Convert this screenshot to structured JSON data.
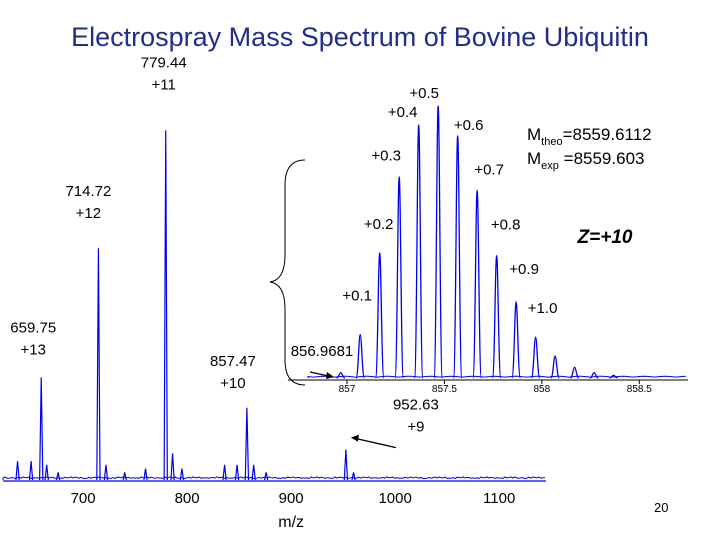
{
  "title": "Electrospray Mass Spectrum of Bovine Ubiquitin",
  "page_number": "20",
  "colors": {
    "title": "#1f2e8c",
    "trace": "#0000ee",
    "text": "#000000"
  },
  "chart_data": [
    {
      "type": "line",
      "role": "main-spectrum",
      "xlabel": "m/z",
      "ylabel": "",
      "xlim": [
        623,
        1145
      ],
      "ylim": [
        0,
        1
      ],
      "grid": false,
      "x_ticks": [
        "700",
        "800",
        "900",
        "1000",
        "1100"
      ],
      "peaks": [
        {
          "mz": 637.0,
          "rel": 0.05
        },
        {
          "mz": 650.0,
          "rel": 0.05
        },
        {
          "mz": 659.75,
          "rel": 0.27,
          "label": [
            "659.75",
            "+13"
          ]
        },
        {
          "mz": 665.0,
          "rel": 0.04
        },
        {
          "mz": 676.0,
          "rel": 0.02
        },
        {
          "mz": 714.72,
          "rel": 0.61,
          "label": [
            "714.72",
            "+12"
          ]
        },
        {
          "mz": 722.0,
          "rel": 0.04
        },
        {
          "mz": 740.0,
          "rel": 0.02
        },
        {
          "mz": 760.0,
          "rel": 0.03
        },
        {
          "mz": 779.44,
          "rel": 0.92,
          "label": [
            "779.44",
            "+11"
          ]
        },
        {
          "mz": 786.0,
          "rel": 0.07
        },
        {
          "mz": 795.0,
          "rel": 0.03
        },
        {
          "mz": 836.0,
          "rel": 0.04
        },
        {
          "mz": 848.0,
          "rel": 0.04
        },
        {
          "mz": 857.47,
          "rel": 0.19,
          "label": [
            "857.47",
            "+10"
          ]
        },
        {
          "mz": 864.0,
          "rel": 0.04
        },
        {
          "mz": 876.0,
          "rel": 0.02
        },
        {
          "mz": 952.63,
          "rel": 0.08,
          "label": [
            "952.63",
            "+9"
          ]
        },
        {
          "mz": 960.0,
          "rel": 0.02
        }
      ]
    },
    {
      "type": "line",
      "role": "zoom-inset-z10",
      "xlim": [
        856.8,
        858.75
      ],
      "x_ticks": [
        "857",
        "857.5",
        "858",
        "858.5"
      ],
      "charge_label": "Z=+10",
      "mono_label": "856.9681",
      "mass_theo_label": {
        "prefix": "M",
        "sub": "theo",
        "value": "=8559.6112"
      },
      "mass_exp_label": {
        "prefix": "M",
        "sub": "exp",
        "value": " =8559.603"
      },
      "isotopes": [
        {
          "mz": 856.968,
          "rel": 0.02
        },
        {
          "mz": 857.068,
          "rel": 0.16,
          "label": "+0.1"
        },
        {
          "mz": 857.168,
          "rel": 0.46,
          "label": "+0.2"
        },
        {
          "mz": 857.268,
          "rel": 0.74,
          "label": "+0.3"
        },
        {
          "mz": 857.368,
          "rel": 0.93,
          "label": "+0.4"
        },
        {
          "mz": 857.468,
          "rel": 1.0,
          "label": "+0.5"
        },
        {
          "mz": 857.568,
          "rel": 0.89,
          "label": "+0.6"
        },
        {
          "mz": 857.668,
          "rel": 0.69,
          "label": "+0.7"
        },
        {
          "mz": 857.768,
          "rel": 0.45,
          "label": "+0.8"
        },
        {
          "mz": 857.868,
          "rel": 0.28,
          "label": "+0.9"
        },
        {
          "mz": 857.968,
          "rel": 0.15,
          "label": "+1.0"
        },
        {
          "mz": 858.068,
          "rel": 0.08
        },
        {
          "mz": 858.168,
          "rel": 0.04
        },
        {
          "mz": 858.268,
          "rel": 0.02
        },
        {
          "mz": 858.368,
          "rel": 0.01
        }
      ]
    }
  ]
}
